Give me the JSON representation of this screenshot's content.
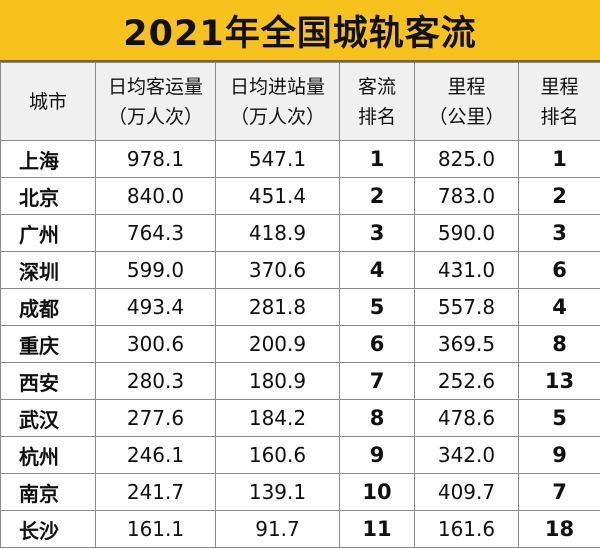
{
  "title": "2021年全国城轨客流",
  "header": {
    "city": "城市",
    "daily_ridership": [
      "日均客运量",
      "（万人次）"
    ],
    "daily_entries": [
      "日均进站量",
      "（万人次）"
    ],
    "passenger_rank": [
      "客流",
      "排名"
    ],
    "mileage": [
      "里程",
      "（公里）"
    ],
    "mileage_rank": [
      "里程",
      "排名"
    ]
  },
  "rows": [
    {
      "city": "上海",
      "daily_ridership": "978.1",
      "daily_entries": "547.1",
      "passenger_rank": "1",
      "mileage": "825.0",
      "mileage_rank": "1"
    },
    {
      "city": "北京",
      "daily_ridership": "840.0",
      "daily_entries": "451.4",
      "passenger_rank": "2",
      "mileage": "783.0",
      "mileage_rank": "2"
    },
    {
      "city": "广州",
      "daily_ridership": "764.3",
      "daily_entries": "418.9",
      "passenger_rank": "3",
      "mileage": "590.0",
      "mileage_rank": "3"
    },
    {
      "city": "深圳",
      "daily_ridership": "599.0",
      "daily_entries": "370.6",
      "passenger_rank": "4",
      "mileage": "431.0",
      "mileage_rank": "6"
    },
    {
      "city": "成都",
      "daily_ridership": "493.4",
      "daily_entries": "281.8",
      "passenger_rank": "5",
      "mileage": "557.8",
      "mileage_rank": "4"
    },
    {
      "city": "重庆",
      "daily_ridership": "300.6",
      "daily_entries": "200.9",
      "passenger_rank": "6",
      "mileage": "369.5",
      "mileage_rank": "8"
    },
    {
      "city": "西安",
      "daily_ridership": "280.3",
      "daily_entries": "180.9",
      "passenger_rank": "7",
      "mileage": "252.6",
      "mileage_rank": "13"
    },
    {
      "city": "武汉",
      "daily_ridership": "277.6",
      "daily_entries": "184.2",
      "passenger_rank": "8",
      "mileage": "478.6",
      "mileage_rank": "5"
    },
    {
      "city": "杭州",
      "daily_ridership": "246.1",
      "daily_entries": "160.6",
      "passenger_rank": "9",
      "mileage": "342.0",
      "mileage_rank": "9"
    },
    {
      "city": "南京",
      "daily_ridership": "241.7",
      "daily_entries": "139.1",
      "passenger_rank": "10",
      "mileage": "409.7",
      "mileage_rank": "7"
    },
    {
      "city": "长沙",
      "daily_ridership": "161.1",
      "daily_entries": "91.7",
      "passenger_rank": "11",
      "mileage": "161.6",
      "mileage_rank": "18"
    }
  ],
  "colors": {
    "title_background": "#f7c21b",
    "header_background": "#f0f0f0",
    "grid_line": "#8a8a8a"
  }
}
